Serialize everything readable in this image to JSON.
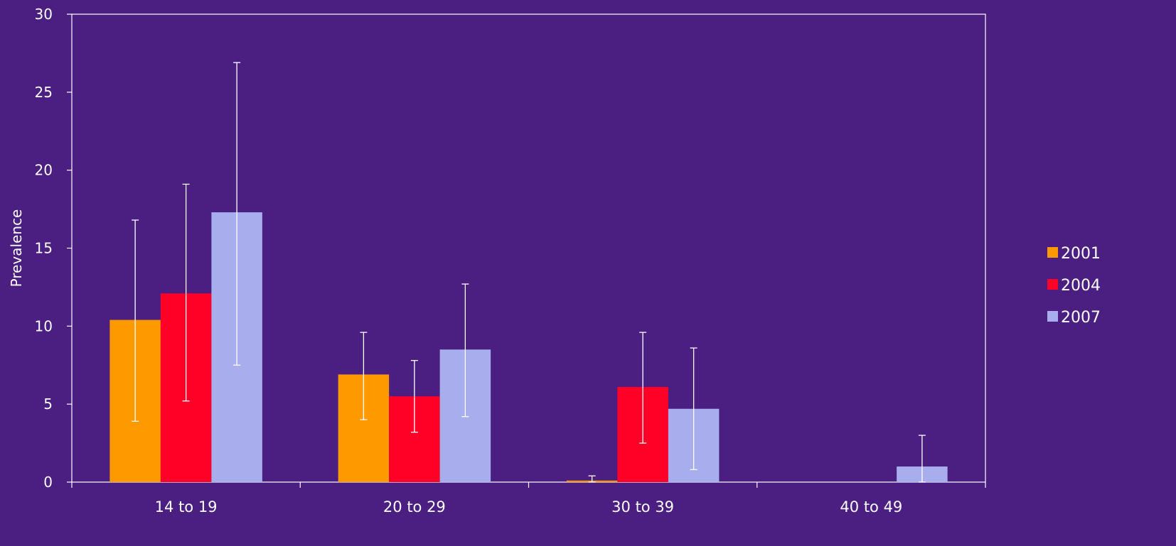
{
  "chart_data": {
    "type": "bar",
    "title": "",
    "xlabel": "",
    "ylabel": "Prevalence",
    "ylim": [
      0,
      30
    ],
    "yticks": [
      0,
      5,
      10,
      15,
      20,
      25,
      30
    ],
    "categories": [
      "14 to 19",
      "20 to 29",
      "30 to 39",
      "40 to 49"
    ],
    "series": [
      {
        "name": "2001",
        "color": "#ff9900",
        "values": [
          10.4,
          6.9,
          0.1,
          0
        ],
        "error_low": [
          3.9,
          4.0,
          0,
          null
        ],
        "error_high": [
          16.8,
          9.6,
          0.4,
          null
        ]
      },
      {
        "name": "2004",
        "color": "#ff0027",
        "values": [
          12.1,
          5.5,
          6.1,
          0
        ],
        "error_low": [
          5.2,
          3.2,
          2.5,
          null
        ],
        "error_high": [
          19.1,
          7.8,
          9.6,
          null
        ]
      },
      {
        "name": "2007",
        "color": "#a8aded",
        "values": [
          17.3,
          8.5,
          4.7,
          1.0
        ],
        "error_low": [
          7.5,
          4.2,
          0.8,
          0
        ],
        "error_high": [
          26.9,
          12.7,
          8.6,
          3.0
        ]
      }
    ],
    "legend_position": "right",
    "grid": false,
    "error_bars": true
  }
}
